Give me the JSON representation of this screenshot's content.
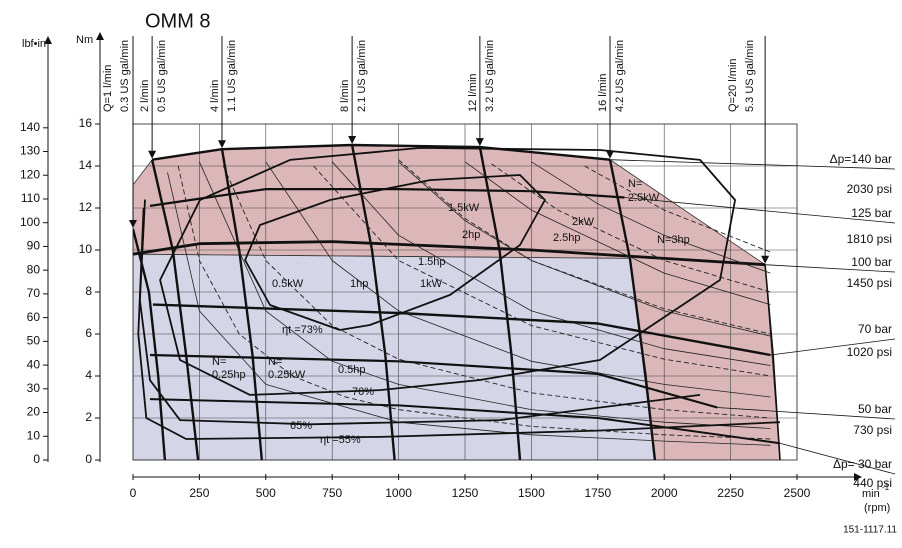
{
  "chart_data": {
    "type": "line",
    "title": "OMM 8",
    "ylabel": "Nm",
    "y2label": "lbf•in",
    "xlabel": "min",
    "xlabel_sup": "-1",
    "xlabel_unit": "(rpm)",
    "footer": "151-1117.11",
    "xlim": [
      0,
      2500
    ],
    "xticks": [
      0,
      250,
      500,
      750,
      1000,
      1250,
      1500,
      1750,
      2000,
      2250,
      2500
    ],
    "ylim": [
      0,
      16
    ],
    "yticks": [
      0,
      2,
      4,
      6,
      8,
      10,
      12,
      14,
      16
    ],
    "y2lim": [
      0,
      141.6
    ],
    "y2ticks": [
      0,
      10,
      20,
      30,
      40,
      50,
      60,
      70,
      80,
      90,
      100,
      110,
      120,
      130,
      140
    ],
    "grid": true,
    "areas": [
      {
        "color": "#dcb7b9",
        "x": [
          0,
          72,
          335,
          825,
          1306,
          1796,
          2380,
          2436,
          1965,
          1871,
          0
        ],
        "y": [
          13.1,
          14.3,
          14.8,
          15,
          14.9,
          14.3,
          9.3,
          0,
          0,
          9.6,
          9.8
        ]
      },
      {
        "color": "#d5d5e8",
        "x": [
          0,
          1871,
          1965,
          0
        ],
        "y": [
          9.8,
          9.6,
          0,
          0
        ]
      }
    ],
    "series": [
      {
        "kind": "flow",
        "labels": [
          "Q=1 l/min",
          "0.3 US gal/min"
        ],
        "color": "#111111",
        "line_width": 2.4,
        "x": [
          0,
          60,
          95,
          120
        ],
        "values": [
          11,
          8,
          4,
          0
        ]
      },
      {
        "kind": "flow",
        "labels": [
          "2 l/min",
          "0.5 US gal/min"
        ],
        "color": "#111111",
        "line_width": 2.4,
        "x": [
          72,
          150,
          200,
          245
        ],
        "values": [
          14.3,
          10,
          5,
          0
        ]
      },
      {
        "kind": "flow",
        "labels": [
          "4 l/min",
          "1.1 US gal/min"
        ],
        "color": "#111111",
        "line_width": 2.4,
        "x": [
          335,
          400,
          450,
          485
        ],
        "values": [
          14.8,
          10,
          5,
          0
        ]
      },
      {
        "kind": "flow",
        "labels": [
          "8 l/min",
          "2.1 US gal/min"
        ],
        "color": "#111111",
        "line_width": 2.4,
        "x": [
          825,
          900,
          950,
          985
        ],
        "values": [
          15,
          10,
          5,
          0
        ]
      },
      {
        "kind": "flow",
        "labels": [
          "12 l/min",
          "3.2 US gal/min"
        ],
        "color": "#111111",
        "line_width": 2.4,
        "x": [
          1306,
          1380,
          1425,
          1457
        ],
        "values": [
          14.9,
          10,
          5,
          0
        ]
      },
      {
        "kind": "flow",
        "labels": [
          "16 l/min",
          "4.2 US gal/min"
        ],
        "color": "#111111",
        "line_width": 2.4,
        "x": [
          1796,
          1871,
          1930,
          1965
        ],
        "values": [
          14.3,
          9.6,
          4,
          0
        ]
      },
      {
        "kind": "flow",
        "labels": [
          "Q=20 l/min",
          "5.3 US gal/min"
        ],
        "color": "#111111",
        "line_width": 1.6,
        "x": [
          2380,
          2410,
          2436
        ],
        "values": [
          9.3,
          5,
          0
        ]
      },
      {
        "kind": "pressure",
        "labels": [
          "Δp=140 bar",
          "2030 psi"
        ],
        "color": "#111111",
        "line_width": 2.4,
        "x": [
          72,
          335,
          825,
          1306,
          1796
        ],
        "values": [
          14.3,
          14.8,
          15,
          14.9,
          14.3
        ]
      },
      {
        "kind": "pressure",
        "labels": [
          "125 bar",
          "1810 psi"
        ],
        "color": "#111111",
        "line_width": 2.2,
        "x": [
          64,
          500,
          1000,
          1500,
          1850
        ],
        "values": [
          12.1,
          12.9,
          12.9,
          12.8,
          12.5
        ]
      },
      {
        "kind": "pressure",
        "labels": [
          "100 bar",
          "1450 psi"
        ],
        "color": "#111111",
        "line_width": 2.8,
        "x": [
          0,
          250,
          750,
          1500,
          2000,
          2380
        ],
        "values": [
          9.8,
          10.3,
          10.4,
          10.0,
          9.6,
          9.3
        ]
      },
      {
        "kind": "pressure",
        "labels": [
          "70 bar",
          "1020 psi"
        ],
        "color": "#111111",
        "line_width": 2.4,
        "x": [
          75,
          1000,
          1750,
          2400
        ],
        "values": [
          7.4,
          7.0,
          6.5,
          5.0
        ]
      },
      {
        "kind": "pressure",
        "labels": [
          "50 bar",
          "730 psi"
        ],
        "color": "#111111",
        "line_width": 2.2,
        "x": [
          64,
          1000,
          1750,
          2200
        ],
        "values": [
          5.0,
          4.7,
          4.1,
          2.5
        ]
      },
      {
        "kind": "pressure",
        "labels": [
          "Δp= 30 bar",
          "440 psi"
        ],
        "color": "#111111",
        "line_width": 2.0,
        "x": [
          64,
          1000,
          1750,
          2436
        ],
        "values": [
          2.9,
          2.6,
          2.0,
          0.8
        ]
      },
      {
        "kind": "power",
        "labels": [
          "N=",
          "0.25kW"
        ],
        "color": "#222222",
        "line_width": 0.9,
        "dashed": true,
        "x": [
          170,
          250,
          400,
          600,
          800,
          1000,
          1500,
          2000,
          2400
        ],
        "values": [
          14.0,
          9.5,
          6.0,
          4.0,
          3.0,
          2.4,
          1.6,
          1.2,
          1.0
        ]
      },
      {
        "kind": "power",
        "labels": [
          "0.5kW"
        ],
        "color": "#222222",
        "line_width": 0.9,
        "dashed": true,
        "x": [
          340,
          500,
          750,
          1000,
          1500,
          2000,
          2400
        ],
        "values": [
          14.0,
          9.5,
          6.4,
          4.8,
          3.2,
          2.4,
          2.0
        ]
      },
      {
        "kind": "power",
        "labels": [
          "1kW"
        ],
        "color": "#222222",
        "line_width": 0.9,
        "dashed": true,
        "x": [
          680,
          1000,
          1500,
          2000,
          2400
        ],
        "values": [
          14.0,
          9.5,
          6.4,
          4.8,
          4.0
        ]
      },
      {
        "kind": "power",
        "labels": [
          "1.5kW"
        ],
        "color": "#222222",
        "line_width": 0.9,
        "dashed": true,
        "x": [
          1000,
          1250,
          1500,
          2000,
          2400
        ],
        "values": [
          14.3,
          11.5,
          9.5,
          7.2,
          6.0
        ]
      },
      {
        "kind": "power",
        "labels": [
          "2kW"
        ],
        "color": "#222222",
        "line_width": 0.9,
        "dashed": true,
        "x": [
          1350,
          1600,
          2000,
          2400
        ],
        "values": [
          14.1,
          11.9,
          9.5,
          8.0
        ]
      },
      {
        "kind": "power",
        "labels": [
          "N=",
          "2.5kW"
        ],
        "color": "#222222",
        "line_width": 0.9,
        "dashed": true,
        "x": [
          1700,
          2000,
          2400
        ],
        "values": [
          14.0,
          11.9,
          9.9
        ]
      },
      {
        "kind": "power",
        "labels": [
          "N=",
          "0.25hp"
        ],
        "color": "#222222",
        "line_width": 0.8,
        "x": [
          130,
          250,
          500,
          1000,
          1500,
          2000,
          2400
        ],
        "values": [
          13.7,
          7.1,
          3.6,
          1.8,
          1.2,
          0.9,
          0.7
        ]
      },
      {
        "kind": "power",
        "labels": [
          "0.5hp"
        ],
        "color": "#222222",
        "line_width": 0.8,
        "x": [
          250,
          500,
          750,
          1000,
          1500,
          2000,
          2400
        ],
        "values": [
          14.2,
          7.1,
          4.7,
          3.6,
          2.4,
          1.8,
          1.5
        ]
      },
      {
        "kind": "power",
        "labels": [
          "1hp"
        ],
        "color": "#222222",
        "line_width": 0.8,
        "x": [
          500,
          750,
          1000,
          1500,
          2000,
          2400
        ],
        "values": [
          14.2,
          9.5,
          7.1,
          4.7,
          3.6,
          3.0
        ]
      },
      {
        "kind": "power",
        "labels": [
          "1.5hp"
        ],
        "color": "#222222",
        "line_width": 0.8,
        "x": [
          750,
          1000,
          1500,
          2000,
          2400
        ],
        "values": [
          14.2,
          10.7,
          7.1,
          5.3,
          4.5
        ]
      },
      {
        "kind": "power",
        "labels": [
          "2hp"
        ],
        "color": "#222222",
        "line_width": 0.8,
        "x": [
          1000,
          1250,
          1500,
          2000,
          2400
        ],
        "values": [
          14.2,
          11.4,
          9.5,
          7.1,
          5.9
        ]
      },
      {
        "kind": "power",
        "labels": [
          "2.5hp"
        ],
        "color": "#222222",
        "line_width": 0.8,
        "x": [
          1250,
          1500,
          2000,
          2400
        ],
        "values": [
          14.2,
          11.9,
          8.9,
          7.4
        ]
      },
      {
        "kind": "power",
        "labels": [
          "N=3hp"
        ],
        "color": "#222222",
        "line_width": 0.8,
        "x": [
          1500,
          1750,
          2000,
          2400
        ],
        "values": [
          14.2,
          12.2,
          10.7,
          8.9
        ]
      },
      {
        "kind": "efficiency",
        "labels": [
          "ηt =73%"
        ],
        "color": "#111111",
        "line_width": 1.8,
        "x": [
          779,
          516,
          422,
          478,
          742,
          1118,
          1457,
          1551,
          1457,
          1194,
          892,
          779
        ],
        "values": [
          6.19,
          7.38,
          9.52,
          11.19,
          12.38,
          13.33,
          13.57,
          12.38,
          10.24,
          7.86,
          6.43,
          6.19
        ]
      },
      {
        "kind": "efficiency",
        "labels": [
          "70%"
        ],
        "color": "#111111",
        "line_width": 1.8,
        "x": [
          930,
          440,
          177,
          102,
          252,
          591,
          1081,
          1758,
          2135,
          2267,
          2210,
          1758,
          1306,
          930
        ],
        "values": [
          3.33,
          3.1,
          4.76,
          8.57,
          12.38,
          14.29,
          14.86,
          14.76,
          14.29,
          12.38,
          8.57,
          4.76,
          3.81,
          3.33
        ]
      },
      {
        "kind": "efficiency",
        "labels": [
          "65%"
        ],
        "color": "#111111",
        "line_width": 1.8,
        "x": [
          45,
          26,
          64,
          177,
          666,
          1382,
          2135
        ],
        "values": [
          12.4,
          7.6,
          3.8,
          1.9,
          1.7,
          1.9,
          3.1
        ]
      },
      {
        "kind": "efficiency",
        "labels": [
          "ηt =55%"
        ],
        "color": "#111111",
        "line_width": 1.8,
        "x": [
          40,
          20,
          50,
          200,
          930,
          1750,
          2436
        ],
        "values": [
          12,
          6,
          2,
          1.0,
          1.1,
          1.4,
          1.8
        ]
      }
    ]
  }
}
